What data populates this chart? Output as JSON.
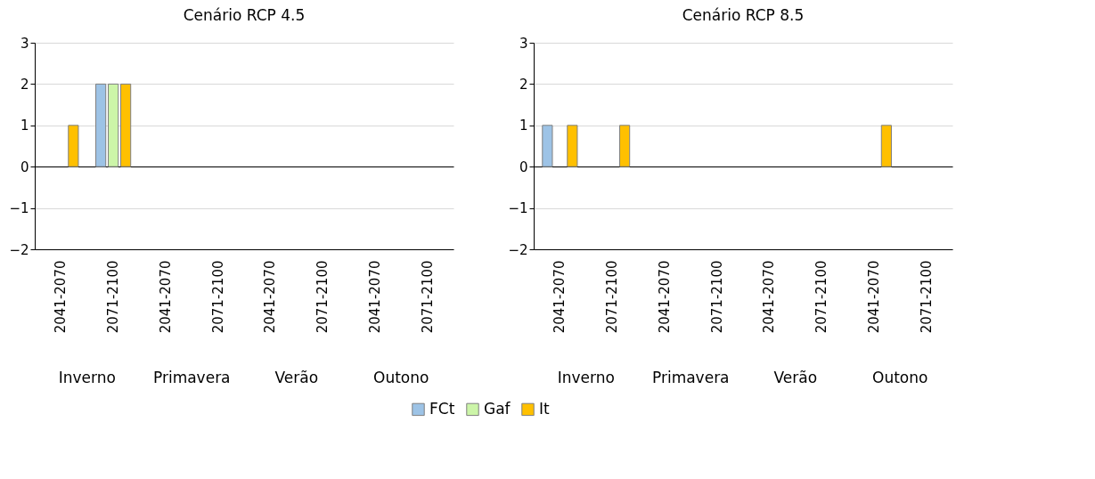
{
  "chart_data": [
    {
      "type": "bar",
      "title": "Cenário RCP 4.5",
      "categories": [
        "2041-2070",
        "2071-2100",
        "2041-2070",
        "2071-2100",
        "2041-2070",
        "2071-2100",
        "2041-2070",
        "2071-2100"
      ],
      "annotations": [
        "Inverno",
        "Primavera",
        "Verão",
        "Outono"
      ],
      "series": [
        {
          "name": "FCt",
          "color": "#9dc3e6",
          "values": [
            0,
            2,
            0,
            0,
            0,
            0,
            0,
            0
          ]
        },
        {
          "name": "Gaf",
          "color": "#ccf5a8",
          "values": [
            0,
            2,
            0,
            0,
            0,
            0,
            0,
            0
          ]
        },
        {
          "name": "It",
          "color": "#ffc000",
          "values": [
            1,
            2,
            0,
            0,
            0,
            0,
            0,
            0
          ]
        }
      ],
      "ylim": [
        -2,
        3
      ],
      "yticks": [
        -2,
        -1,
        0,
        1,
        2,
        3
      ],
      "grid": "y",
      "legend": "bottom"
    },
    {
      "type": "bar",
      "title": "Cenário RCP 8.5",
      "categories": [
        "2041-2070",
        "2071-2100",
        "2041-2070",
        "2071-2100",
        "2041-2070",
        "2071-2100",
        "2041-2070",
        "2071-2100"
      ],
      "annotations": [
        "Inverno",
        "Primavera",
        "Verão",
        "Outono"
      ],
      "series": [
        {
          "name": "FCt",
          "color": "#9dc3e6",
          "values": [
            1,
            0,
            0,
            0,
            0,
            0,
            0,
            0
          ]
        },
        {
          "name": "Gaf",
          "color": "#ccf5a8",
          "values": [
            0,
            0,
            0,
            0,
            0,
            0,
            0,
            0
          ]
        },
        {
          "name": "It",
          "color": "#ffc000",
          "values": [
            1,
            1,
            0,
            0,
            0,
            0,
            1,
            0
          ]
        }
      ],
      "ylim": [
        -2,
        3
      ],
      "yticks": [
        -2,
        -1,
        0,
        1,
        2,
        3
      ],
      "grid": "y",
      "legend": "bottom"
    }
  ]
}
